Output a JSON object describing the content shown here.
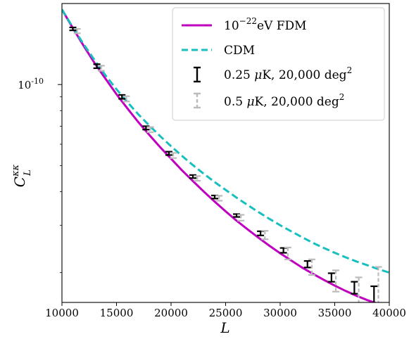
{
  "chart_data": {
    "type": "line",
    "xlabel": "L",
    "ylabel": "C",
    "ylabel_sup": "κκ",
    "ylabel_sub": "L",
    "xlim": [
      10000,
      40000
    ],
    "ylim": [
      1.55e-11,
      2e-10
    ],
    "yscale": "log",
    "xticks": [
      10000,
      15000,
      20000,
      25000,
      30000,
      35000,
      40000
    ],
    "xtick_labels": [
      "10000",
      "15000",
      "20000",
      "25000",
      "30000",
      "35000",
      "40000"
    ],
    "ytick_label_base": "10",
    "ytick_label_exp": "-10",
    "grid": false,
    "legend_position": "top-right",
    "legend": {
      "fdm_prefix": "10",
      "fdm_exp": "−22",
      "fdm_suffix": "eV FDM",
      "cdm": "CDM",
      "err1_a": "0.25 ",
      "err1_mu": "μ",
      "err1_b": "K, 20,000 deg",
      "err1_exp": "2",
      "err2_a": "0.5 ",
      "err2_mu": "μ",
      "err2_b": "K, 20,000 deg",
      "err2_exp": "2"
    },
    "series": [
      {
        "name": "10^-22 eV FDM",
        "style": "solid",
        "color": "#bf00bf",
        "x": [
          10000,
          11000,
          12000,
          13000,
          14000,
          15000,
          16000,
          17000,
          18000,
          19000,
          20000,
          21000,
          22000,
          23000,
          24000,
          25000,
          26000,
          27000,
          28000,
          29000,
          30000,
          31000,
          32000,
          33000,
          34000,
          35000,
          36000,
          37000,
          38000,
          39000,
          40000
        ],
        "y": [
          1.9e-10,
          1.62e-10,
          1.39e-10,
          1.2e-10,
          1.05e-10,
          9.2e-11,
          8.15e-11,
          7.25e-11,
          6.5e-11,
          5.85e-11,
          5.3e-11,
          4.8e-11,
          4.38e-11,
          4e-11,
          3.67e-11,
          3.38e-11,
          3.12e-11,
          2.9e-11,
          2.7e-11,
          2.52e-11,
          2.36e-11,
          2.22e-11,
          2.09e-11,
          1.98e-11,
          1.88e-11,
          1.79e-11,
          1.71e-11,
          1.64e-11,
          1.58e-11,
          1.53e-11,
          1.48e-11
        ]
      },
      {
        "name": "CDM",
        "style": "dashed",
        "color": "#17bfbf",
        "x": [
          10000,
          11000,
          12000,
          13000,
          14000,
          15000,
          16000,
          17000,
          18000,
          19000,
          20000,
          21000,
          22000,
          23000,
          24000,
          25000,
          26000,
          27000,
          28000,
          29000,
          30000,
          31000,
          32000,
          33000,
          34000,
          35000,
          36000,
          37000,
          38000,
          39000,
          40000
        ],
        "y": [
          1.9e-10,
          1.63e-10,
          1.41e-10,
          1.23e-10,
          1.08e-10,
          9.6e-11,
          8.6e-11,
          7.75e-11,
          7.05e-11,
          6.43e-11,
          5.9e-11,
          5.43e-11,
          5.02e-11,
          4.66e-11,
          4.34e-11,
          4.06e-11,
          3.8e-11,
          3.57e-11,
          3.36e-11,
          3.17e-11,
          3e-11,
          2.85e-11,
          2.71e-11,
          2.58e-11,
          2.47e-11,
          2.37e-11,
          2.28e-11,
          2.2e-11,
          2.13e-11,
          2.06e-11,
          2e-11
        ]
      }
    ],
    "error_bars": [
      {
        "name": "0.25 μK, 20,000 deg^2",
        "color": "#000000",
        "x": [
          11000,
          13200,
          15500,
          17700,
          19800,
          22000,
          24000,
          26000,
          28200,
          30300,
          32500,
          34700,
          36800,
          38600
        ],
        "y": [
          1.61e-10,
          1.17e-10,
          9e-11,
          6.9e-11,
          5.55e-11,
          4.55e-11,
          3.82e-11,
          3.26e-11,
          2.8e-11,
          2.42e-11,
          2.15e-11,
          1.92e-11,
          1.76e-11,
          1.64e-11
        ],
        "err": [
          2e-12,
          2e-12,
          1.5e-12,
          1e-12,
          8e-13,
          6e-13,
          5e-13,
          4e-13,
          5e-13,
          5e-13,
          6e-13,
          7e-13,
          9e-13,
          1.4e-12
        ]
      },
      {
        "name": "0.5 μK, 20,000 deg^2",
        "color": "#bbbbbb",
        "x": [
          11400,
          13600,
          15900,
          18100,
          20200,
          22400,
          24400,
          26400,
          28600,
          30700,
          32900,
          35100,
          37200,
          39000
        ],
        "y": [
          1.58e-10,
          1.15e-10,
          8.85e-11,
          6.8e-11,
          5.45e-11,
          4.48e-11,
          3.78e-11,
          3.2e-11,
          2.76e-11,
          2.36e-11,
          2.1e-11,
          1.87e-11,
          1.72e-11,
          1.6e-11
        ],
        "err": [
          3e-12,
          2.5e-12,
          2e-12,
          1.5e-12,
          1.2e-12,
          9e-13,
          8e-13,
          8e-13,
          1e-12,
          1.2e-12,
          1.4e-12,
          1.7e-12,
          2e-12,
          5e-12
        ]
      }
    ]
  }
}
